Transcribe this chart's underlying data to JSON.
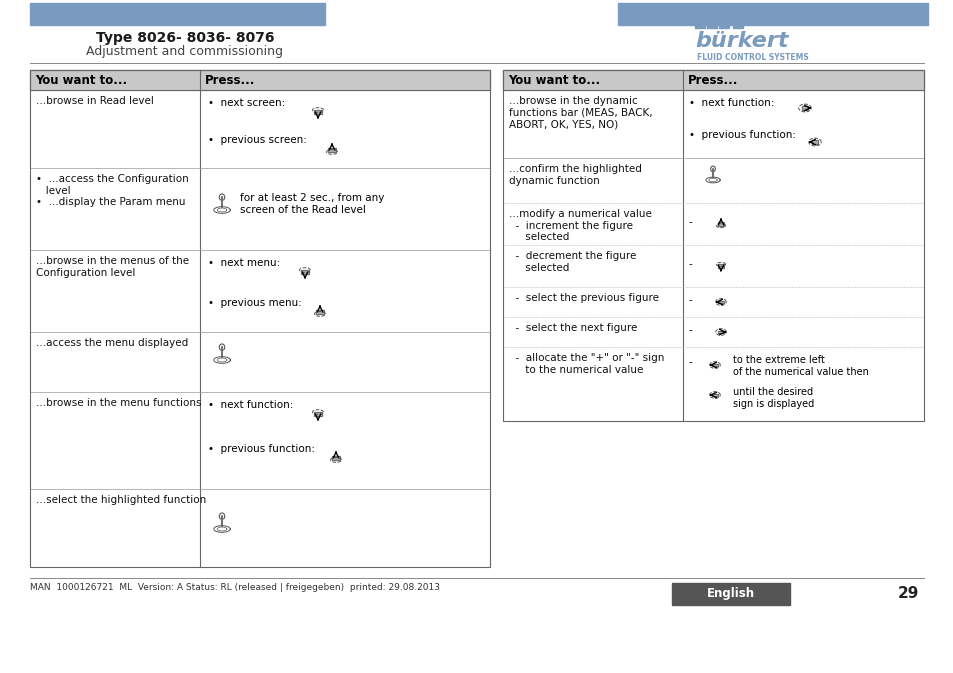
{
  "title": "Type 8026- 8036- 8076",
  "subtitle": "Adjustment and commissioning",
  "footer_text": "MAN  1000126721  ML  Version: A Status: RL (released | freigegeben)  printed: 29.08.2013",
  "page_num": "29",
  "english_label": "English",
  "header_bar_color": "#7a9bbf",
  "body_bg": "#ffffff",
  "table_header_bg": "#c8c8c8",
  "footer_lang_bg": "#555555",
  "footer_lang_text": "#ffffff",
  "left_col_header": "You want to...",
  "right_col_header": "Press...",
  "left_col_header2": "You want to...",
  "right_col_header2": "Press..."
}
